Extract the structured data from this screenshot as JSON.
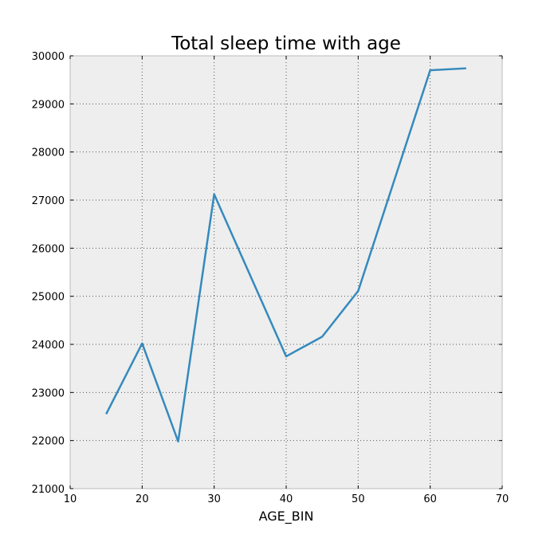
{
  "chart_data": {
    "type": "line",
    "title": "Total sleep time with age",
    "xlabel": "AGE_BIN",
    "ylabel": "",
    "xlim": [
      10,
      70
    ],
    "ylim": [
      21000,
      30000
    ],
    "xticks": [
      10,
      20,
      30,
      40,
      50,
      60,
      70
    ],
    "yticks": [
      21000,
      22000,
      23000,
      24000,
      25000,
      26000,
      27000,
      28000,
      29000,
      30000
    ],
    "grid": true,
    "legend": "none",
    "colors": {
      "line": "#348abd",
      "plot_background": "#eeeeee",
      "grid": "#555555",
      "frame": "#bcbcbc"
    },
    "series": [
      {
        "x": [
          15,
          20,
          25,
          30,
          40,
          45,
          50,
          60,
          65
        ],
        "values": [
          22550,
          24020,
          21980,
          27120,
          23750,
          24160,
          25110,
          29700,
          29740
        ]
      }
    ]
  }
}
